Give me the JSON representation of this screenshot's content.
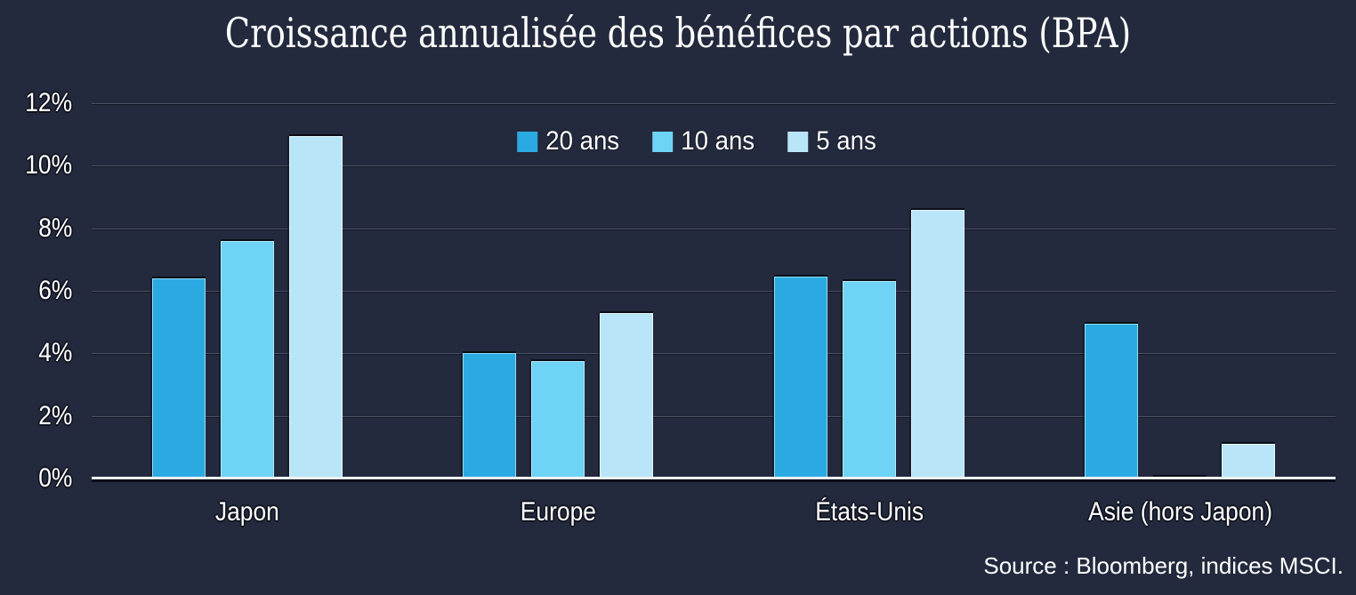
{
  "title": "Croissance annualisée des bénéfices par actions (BPA)",
  "source": "Source : Bloomberg, indices MSCI.",
  "colors": {
    "background": "#232A3D",
    "text": "#FFFFFF",
    "text_outline": "#10131F",
    "gridline": "#4A5164",
    "baseline": "#EFF1F3",
    "series_20_ans": "#2BAAE2",
    "series_10_ans": "#6ED3F5",
    "series_5_ans": "#B9E5F8"
  },
  "chart_data": {
    "type": "bar",
    "title": "Croissance annualisée des bénéfices par actions (BPA)",
    "categories": [
      "Japon",
      "Europe",
      "États-Unis",
      "Asie (hors Japon)"
    ],
    "series": [
      {
        "name": "20 ans",
        "color": "#2BAAE2",
        "edge": "#8FE0F7",
        "values": [
          6.4,
          4.0,
          6.45,
          4.95
        ]
      },
      {
        "name": "10 ans",
        "color": "#6ED3F5",
        "edge": "#B4ECFB",
        "values": [
          7.6,
          3.75,
          6.3,
          0.05
        ]
      },
      {
        "name": "5 ans",
        "color": "#B9E5F8",
        "edge": "#E3F5FD",
        "values": [
          10.95,
          5.3,
          8.6,
          1.1
        ]
      }
    ],
    "xlabel": "",
    "ylabel": "",
    "ylim": [
      0,
      12
    ],
    "yticks": [
      0,
      2,
      4,
      6,
      8,
      10,
      12
    ],
    "ytick_format": "{v}%",
    "grid": true,
    "legend_position": "top-center",
    "source": "Source : Bloomberg, indices MSCI."
  }
}
